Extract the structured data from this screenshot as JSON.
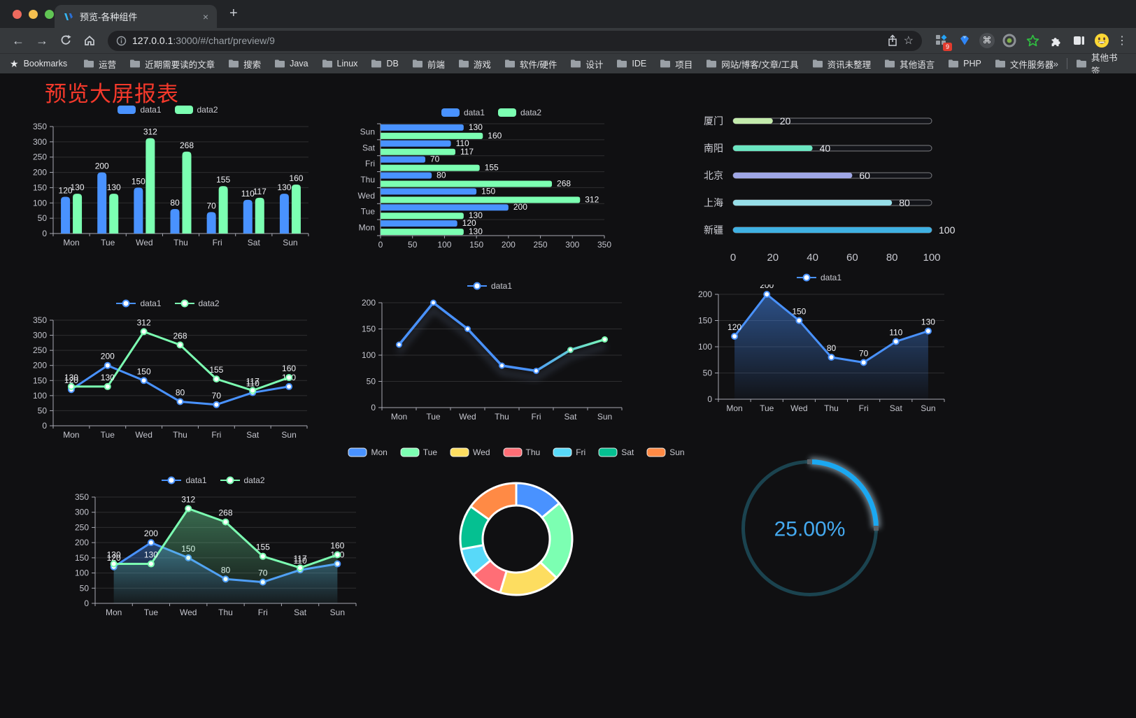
{
  "window": {
    "tab_title": "预览-各种组件"
  },
  "icons": {
    "back": "←",
    "forward": "→",
    "kebab": "⋮",
    "overflow": "»",
    "bookmarks_star": "★",
    "url_star": "☆",
    "cmd": "⌘",
    "tab_close": "×",
    "new_tab": "+"
  },
  "toolbar": {
    "url_host": "127.0.0.1",
    "url_rest": ":3000/#/chart/preview/9",
    "extensions_badge": "9"
  },
  "bookmarks": {
    "label": "Bookmarks",
    "folders": [
      "运营",
      "近期需要读的文章",
      "搜索",
      "Java",
      "Linux",
      "DB",
      "前端",
      "游戏",
      "软件/硬件",
      "设计",
      "IDE",
      "项目",
      "网站/博客/文章/工具",
      "资讯未整理",
      "其他语言",
      "PHP",
      "文件服务器"
    ],
    "other_label": "其他书签"
  },
  "page": {
    "title": "预览大屏报表",
    "title_color": "#f5392b",
    "background": "#101012"
  },
  "chart_data": [
    {
      "id": "bar-grouped",
      "type": "bar",
      "categories": [
        "Mon",
        "Tue",
        "Wed",
        "Thu",
        "Fri",
        "Sat",
        "Sun"
      ],
      "series": [
        {
          "name": "data1",
          "color": "#4992ff",
          "values": [
            120,
            200,
            150,
            80,
            70,
            110,
            130
          ]
        },
        {
          "name": "data2",
          "color": "#7cffb2",
          "values": [
            130,
            130,
            312,
            268,
            155,
            117,
            160
          ]
        }
      ],
      "ylim": [
        0,
        350
      ],
      "ystep": 50,
      "labels": true
    },
    {
      "id": "bar-horizontal",
      "type": "hbar",
      "categories": [
        "Mon",
        "Tue",
        "Wed",
        "Thu",
        "Fri",
        "Sat",
        "Sun"
      ],
      "categories_top_to_bottom": [
        "Sun",
        "Sat",
        "Fri",
        "Thu",
        "Wed",
        "Tue",
        "Mon"
      ],
      "series": [
        {
          "name": "data1",
          "color": "#4992ff",
          "values": [
            120,
            200,
            150,
            80,
            70,
            110,
            130
          ]
        },
        {
          "name": "data2",
          "color": "#7cffb2",
          "values": [
            130,
            130,
            312,
            268,
            155,
            117,
            160
          ]
        }
      ],
      "xlim": [
        0,
        350
      ],
      "xstep": 50,
      "labels": true
    },
    {
      "id": "progress-cities",
      "type": "progress",
      "max": 100,
      "ticks": [
        0,
        20,
        40,
        60,
        80,
        100
      ],
      "items": [
        {
          "label": "厦门",
          "value": 20,
          "color": "#c4ebad"
        },
        {
          "label": "南阳",
          "value": 40,
          "color": "#6be6c1"
        },
        {
          "label": "北京",
          "value": 60,
          "color": "#a0a7e6"
        },
        {
          "label": "上海",
          "value": 80,
          "color": "#96dee8"
        },
        {
          "label": "新疆",
          "value": 100,
          "color": "#3fb1e3"
        }
      ]
    },
    {
      "id": "line-dual",
      "type": "line",
      "categories": [
        "Mon",
        "Tue",
        "Wed",
        "Thu",
        "Fri",
        "Sat",
        "Sun"
      ],
      "series": [
        {
          "name": "data1",
          "color": "#4992ff",
          "values": [
            120,
            200,
            150,
            80,
            70,
            110,
            130
          ]
        },
        {
          "name": "data2",
          "color": "#7cffb2",
          "values": [
            130,
            130,
            312,
            268,
            155,
            117,
            160
          ]
        }
      ],
      "ylim": [
        0,
        350
      ],
      "ystep": 50,
      "labels": true
    },
    {
      "id": "line-gradient",
      "type": "line-gradient",
      "categories": [
        "Mon",
        "Tue",
        "Wed",
        "Thu",
        "Fri",
        "Sat",
        "Sun"
      ],
      "series": [
        {
          "name": "data1",
          "gradient": [
            "#4992ff",
            "#7cffb2"
          ],
          "values": [
            120,
            200,
            150,
            80,
            70,
            110,
            130
          ]
        }
      ],
      "ylim": [
        0,
        200
      ],
      "ystep": 50,
      "labels": false
    },
    {
      "id": "area-single",
      "type": "area",
      "categories": [
        "Mon",
        "Tue",
        "Wed",
        "Thu",
        "Fri",
        "Sat",
        "Sun"
      ],
      "series": [
        {
          "name": "data1",
          "color": "#4992ff",
          "values": [
            120,
            200,
            150,
            80,
            70,
            110,
            130
          ],
          "area": true,
          "area_opacity": 0.5
        }
      ],
      "ylim": [
        0,
        200
      ],
      "ystep": 50,
      "labels": true
    },
    {
      "id": "area-dual",
      "type": "area-dual",
      "categories": [
        "Mon",
        "Tue",
        "Wed",
        "Thu",
        "Fri",
        "Sat",
        "Sun"
      ],
      "series": [
        {
          "name": "data1",
          "color": "#4992ff",
          "values": [
            120,
            200,
            150,
            80,
            70,
            110,
            130
          ],
          "area": true,
          "area_opacity": 0.4
        },
        {
          "name": "data2",
          "color": "#7cffb2",
          "values": [
            130,
            130,
            312,
            268,
            155,
            117,
            160
          ],
          "area": true,
          "area_opacity": 0.38
        }
      ],
      "ylim": [
        0,
        350
      ],
      "ystep": 50,
      "labels": true
    },
    {
      "id": "donut-week",
      "type": "donut",
      "items": [
        {
          "label": "Mon",
          "value": 120,
          "color": "#4992ff"
        },
        {
          "label": "Tue",
          "value": 200,
          "color": "#7cffb2"
        },
        {
          "label": "Wed",
          "value": 150,
          "color": "#fddd60"
        },
        {
          "label": "Thu",
          "value": 80,
          "color": "#ff6e76"
        },
        {
          "label": "Fri",
          "value": 70,
          "color": "#58d9f9"
        },
        {
          "label": "Sat",
          "value": 110,
          "color": "#05c091"
        },
        {
          "label": "Sun",
          "value": 130,
          "color": "#ff8a45"
        }
      ]
    },
    {
      "id": "gauge-percent",
      "type": "gauge",
      "value": 25,
      "label": "25.00%",
      "color": "#1ba8f1",
      "track_color": "#1b434f",
      "text_color": "#45aaf0"
    }
  ]
}
